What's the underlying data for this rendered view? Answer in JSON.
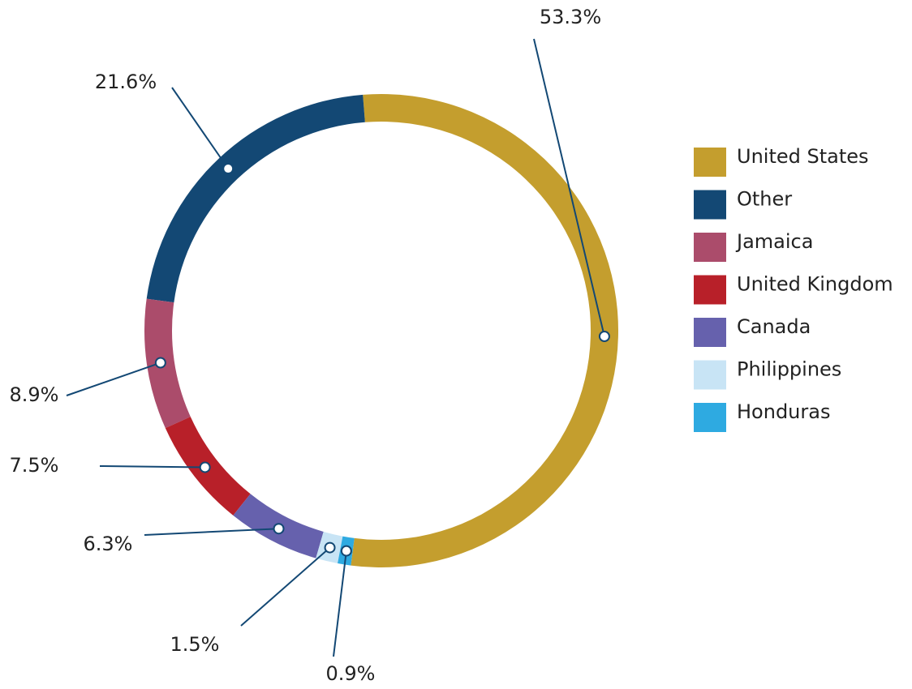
{
  "chart_data": {
    "type": "donut",
    "categories": [
      "United States",
      "Other",
      "Jamaica",
      "United Kingdom",
      "Canada",
      "Philippines",
      "Honduras"
    ],
    "values": [
      53.3,
      21.6,
      8.9,
      7.5,
      6.3,
      1.5,
      0.9
    ],
    "value_labels": [
      "53.3%",
      "21.6%",
      "8.9%",
      "7.5%",
      "6.3%",
      "1.5%",
      "0.9%"
    ],
    "colors": [
      "#c49e2e",
      "#134874",
      "#ab4c6b",
      "#b82029",
      "#6661ad",
      "#c8e4f5",
      "#2eaae1"
    ],
    "legend": "right"
  }
}
